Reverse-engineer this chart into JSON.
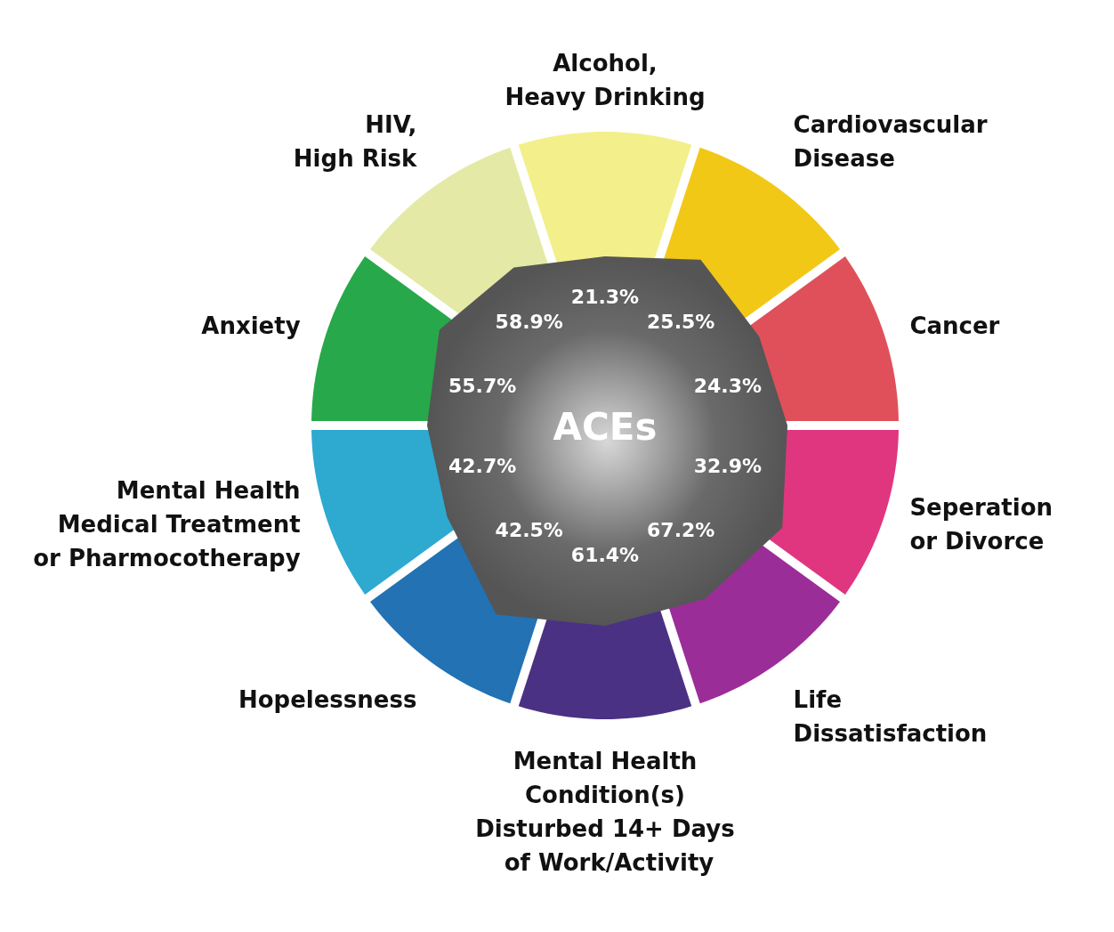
{
  "chart_data": {
    "type": "other",
    "title": "ACEs",
    "categories": [
      "Alcohol,\nHeavy Drinking",
      "Cardiovascular\nDisease",
      "Cancer",
      "Seperation\nor Divorce",
      "Life\nDissatisfaction",
      "Mental Health\nCondition(s)\nDisturbed 14+ Days\n of Work/Activity",
      "Hopelessness",
      "Mental Health\nMedical Treatment\nor Pharmocotherapy",
      "Anxiety",
      "HIV,\nHigh Risk"
    ],
    "values": [
      21.3,
      25.5,
      24.3,
      32.9,
      67.2,
      61.4,
      42.5,
      42.7,
      55.7,
      58.9
    ],
    "value_labels": [
      "21.3%",
      "25.5%",
      "24.3%",
      "32.9%",
      "67.2%",
      "61.4%",
      "42.5%",
      "42.7%",
      "55.7%",
      "58.9%"
    ],
    "colors": [
      "#f3ef8a",
      "#f2c817",
      "#e0505a",
      "#e0367f",
      "#9b2d98",
      "#4a3184",
      "#2272b4",
      "#2ea9d0",
      "#27a84a",
      "#e4eaa6"
    ]
  }
}
